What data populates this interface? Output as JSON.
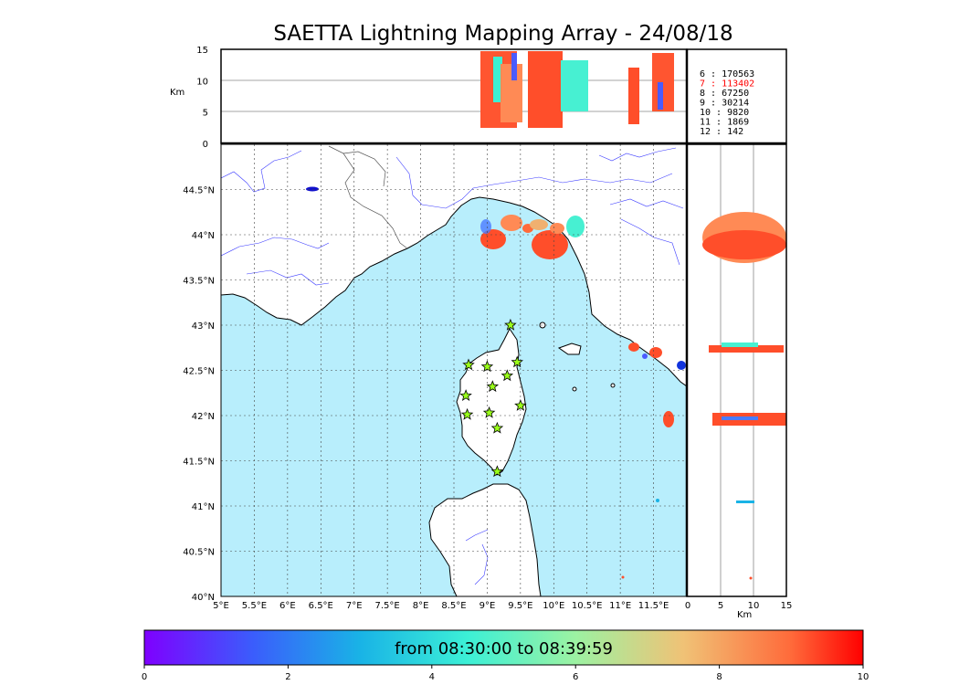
{
  "title": "SAETTA Lightning Mapping Array - 24/08/18",
  "unit_km": "Km",
  "alt_ticks": [
    "15",
    "10",
    "5",
    "0"
  ],
  "lat_ticks": [
    "44.5°N",
    "44°N",
    "43.5°N",
    "43°N",
    "42.5°N",
    "42°N",
    "41.5°N",
    "41°N",
    "40.5°N",
    "40°N"
  ],
  "lon_ticks": [
    "5°E",
    "5.5°E",
    "6°E",
    "6.5°E",
    "7°E",
    "7.5°E",
    "8°E",
    "8.5°E",
    "9°E",
    "9.5°E",
    "10°E",
    "10.5°E",
    "11°E",
    "11.5°E"
  ],
  "km_ticks": [
    "0",
    "5",
    "10",
    "15"
  ],
  "station_counts": [
    {
      "label": "6  :  170563",
      "color": "#000000"
    },
    {
      "label": "7  :  113402",
      "color": "#ff0000"
    },
    {
      "label": "8  :   67250",
      "color": "#000000"
    },
    {
      "label": "9  :   30214",
      "color": "#000000"
    },
    {
      "label": "10 :    9820",
      "color": "#000000"
    },
    {
      "label": "11 :    1869",
      "color": "#000000"
    },
    {
      "label": "12 :     142",
      "color": "#000000"
    }
  ],
  "colorbar": {
    "label": "from 08:30:00 to 08:39:59",
    "ticks": [
      "0",
      "2",
      "4",
      "6",
      "8",
      "10"
    ],
    "range": [
      0,
      10
    ]
  },
  "colors": {
    "sea": "#b8eefc",
    "land": "#ffffff",
    "rivers": "#3333ff",
    "stations": "#9aff1a"
  },
  "map_extent": {
    "lon": [
      5,
      12
    ],
    "lat": [
      40,
      45
    ]
  },
  "stations_lonlat": [
    [
      9.35,
      43.0
    ],
    [
      8.72,
      42.56
    ],
    [
      9.0,
      42.54
    ],
    [
      9.45,
      42.59
    ],
    [
      9.3,
      42.44
    ],
    [
      9.08,
      42.32
    ],
    [
      8.68,
      42.22
    ],
    [
      9.5,
      42.11
    ],
    [
      8.7,
      42.01
    ],
    [
      9.03,
      42.03
    ],
    [
      9.15,
      41.86
    ],
    [
      9.15,
      41.38
    ]
  ]
}
